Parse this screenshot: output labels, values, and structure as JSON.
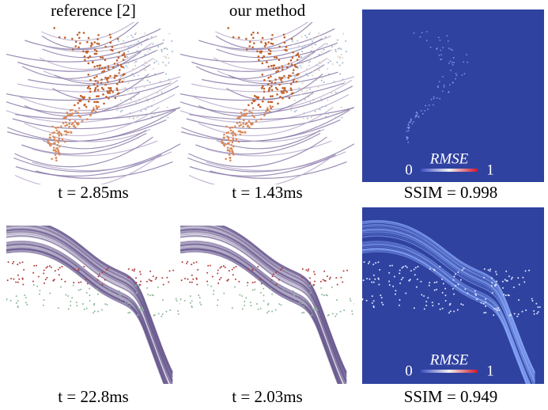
{
  "columns": [
    "reference [2]",
    "our method"
  ],
  "rows": [
    {
      "captions": [
        "t = 2.85ms",
        "t = 1.43ms",
        "SSIM = 0.998"
      ],
      "colorbar": {
        "min": "0",
        "label": "RMSE",
        "max": "1"
      }
    },
    {
      "captions": [
        "t = 22.8ms",
        "t = 2.03ms",
        "SSIM = 0.949"
      ],
      "colorbar": {
        "min": "0",
        "label": "RMSE",
        "max": "1"
      }
    }
  ]
}
